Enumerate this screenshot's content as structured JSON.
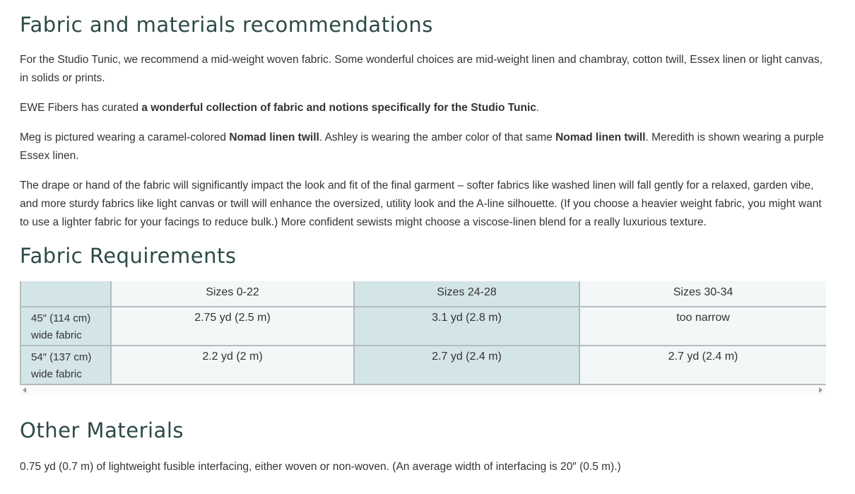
{
  "section1": {
    "title": "Fabric and materials recommendations",
    "p1": "For the Studio Tunic, we recommend a mid-weight woven fabric. Some wonderful choices are mid-weight linen and chambray, cotton twill, Essex linen or light canvas, in solids or prints.",
    "p2_pre": "EWE Fibers has curated ",
    "p2_bold": "a wonderful collection of fabric and notions specifically for the Studio Tunic",
    "p2_post": ".",
    "p3_a": "Meg is pictured wearing a caramel-colored ",
    "p3_b": "Nomad linen twill",
    "p3_c": ". Ashley is wearing the amber color of that same ",
    "p3_d": "Nomad linen twill",
    "p3_e": ". Meredith is shown wearing a purple Essex linen.",
    "p4": "The drape or hand of the fabric will significantly impact the look and fit of the final garment – softer fabrics like washed linen will fall gently for a relaxed, garden vibe, and more sturdy fabrics like light canvas or twill will enhance the oversized, utility look and the A-line silhouette. (If you choose a heavier weight fabric, you might want to use a lighter fabric for your facings to reduce bulk.) More confident sewists might choose a viscose-linen blend for a really luxurious texture."
  },
  "section2": {
    "title": "Fabric Requirements",
    "table": {
      "headers": [
        "",
        "Sizes 0-22",
        "Sizes 24-28",
        "Sizes 30-34"
      ],
      "rows": [
        {
          "label_1": "45″ (114 cm)",
          "label_2": "wide fabric",
          "values": [
            "2.75 yd (2.5 m)",
            "3.1 yd (2.8 m)",
            "too narrow"
          ]
        },
        {
          "label_1": "54″ (137 cm)",
          "label_2": "wide fabric",
          "values": [
            "2.2 yd (2 m)",
            "2.7 yd (2.4 m)",
            "2.7 yd (2.4 m)"
          ]
        }
      ]
    }
  },
  "section3": {
    "title": "Other Materials",
    "p1": "0.75 yd (0.7 m) of lightweight fusible interfacing, either woven or non-woven. (An average width of interfacing is 20″ (0.5 m).)"
  }
}
